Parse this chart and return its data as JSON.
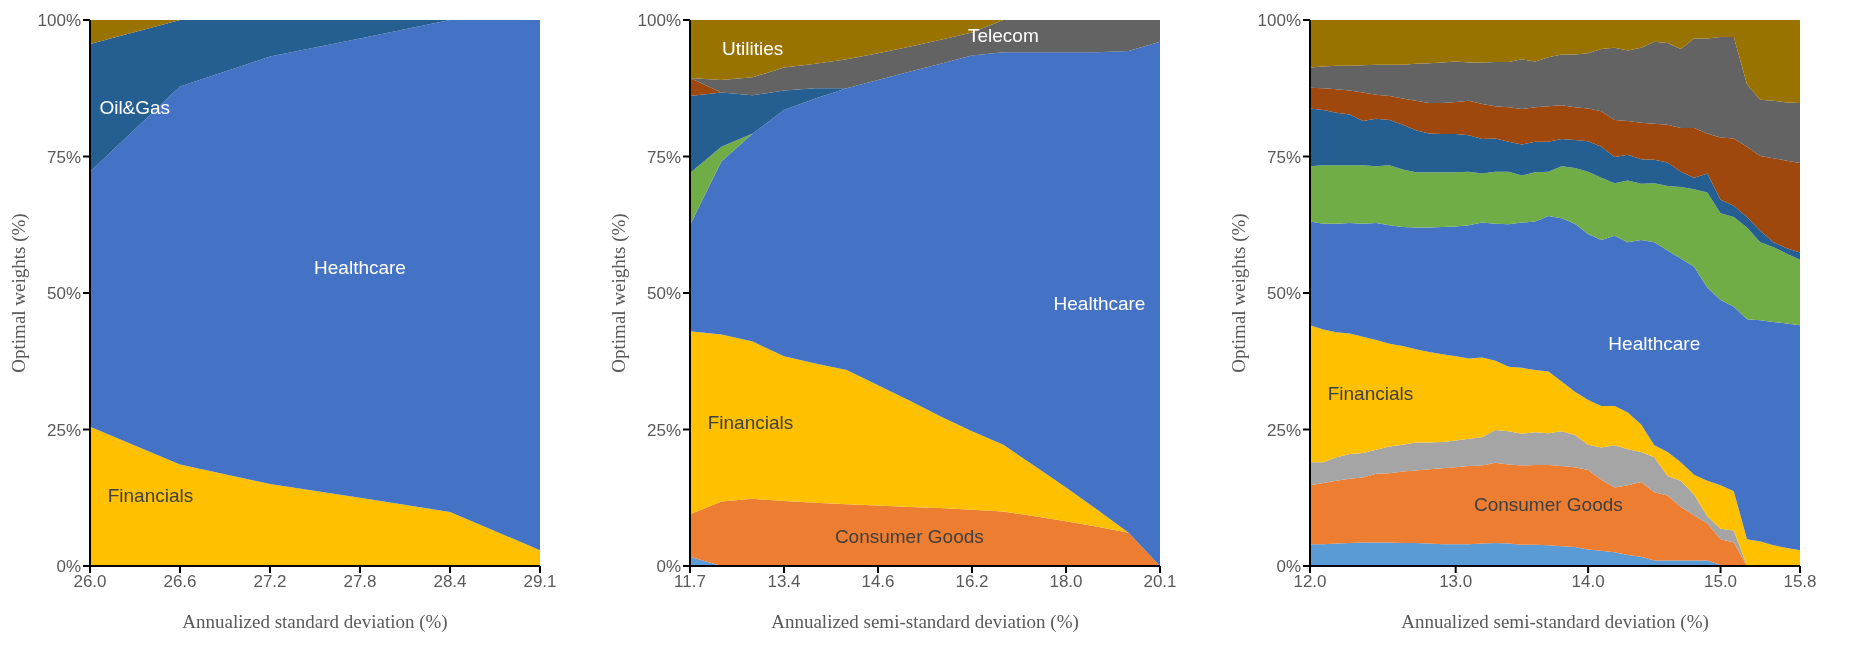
{
  "chart_data": [
    {
      "type": "area",
      "stacked": true,
      "xlabel": "Annualized standard deviation (%)",
      "ylabel": "Optimal weights (%)",
      "categories": [
        "26.0",
        "26.6",
        "27.2",
        "27.8",
        "28.4",
        "29.1"
      ],
      "ylim": [
        0,
        100
      ],
      "yticks": [
        {
          "value": 0,
          "label": "0%"
        },
        {
          "value": 25,
          "label": "25%"
        },
        {
          "value": 50,
          "label": "50%"
        },
        {
          "value": 75,
          "label": "75%"
        },
        {
          "value": 100,
          "label": "100%"
        }
      ],
      "series": [
        {
          "name": "Financials",
          "color": "#ffc000",
          "values": [
            25.5,
            18.6,
            15.0,
            12.5,
            9.9,
            2.9
          ]
        },
        {
          "name": "Healthcare",
          "color": "#4472c4",
          "values": [
            46.7,
            69.2,
            78.3,
            84.1,
            90.1,
            97.1
          ]
        },
        {
          "name": "Oil&Gas",
          "color": "#255e91",
          "values": [
            23.4,
            12.2,
            6.7,
            3.4,
            0,
            0
          ]
        },
        {
          "color": "#997300",
          "values": [
            4.4,
            0,
            0,
            0,
            0,
            0
          ]
        }
      ]
    },
    {
      "type": "area",
      "stacked": true,
      "xlabel": "Annualized semi-standard deviation (%)",
      "ylabel": "Optimal weights (%)",
      "categories": [
        "11.7",
        null,
        null,
        "13.4",
        null,
        null,
        "14.6",
        null,
        null,
        "16.2",
        null,
        null,
        "18.0",
        null,
        null,
        "20.1"
      ],
      "ylim": [
        0,
        100
      ],
      "yticks": [
        {
          "value": 0,
          "label": "0%"
        },
        {
          "value": 25,
          "label": "25%"
        },
        {
          "value": 50,
          "label": "50%"
        },
        {
          "value": 75,
          "label": "75%"
        },
        {
          "value": 100,
          "label": "100%"
        }
      ],
      "series": [
        {
          "color": "#5b9bd5",
          "values": [
            1.7,
            0,
            0,
            0,
            0,
            0,
            0,
            0,
            0,
            0,
            0,
            0,
            0,
            0,
            0,
            0
          ]
        },
        {
          "name": "Consumer Goods",
          "color": "#ed7d31",
          "values": [
            7.8,
            11.8,
            12.3,
            11.9,
            11.6,
            11.3,
            11.1,
            10.8,
            10.6,
            10.3,
            10.0,
            9.1,
            8.2,
            7.2,
            6.1,
            0
          ]
        },
        {
          "name": "Financials",
          "color": "#ffc000",
          "values": [
            33.5,
            30.6,
            28.8,
            26.5,
            25.5,
            24.6,
            22.0,
            19.5,
            16.8,
            14.4,
            12.2,
            9.2,
            6.2,
            3.1,
            0,
            0
          ]
        },
        {
          "name": "Healthcare",
          "color": "#4472c4",
          "values": [
            19.4,
            31.7,
            38.1,
            45.1,
            48.5,
            51.6,
            55.9,
            60.2,
            64.6,
            68.8,
            71.9,
            75.8,
            79.7,
            83.8,
            88.2,
            96.0
          ]
        },
        {
          "color": "#70ad47",
          "values": [
            9.6,
            2.7,
            0,
            0,
            0,
            0,
            0,
            0,
            0,
            0,
            0,
            0,
            0,
            0,
            0,
            0
          ]
        },
        {
          "color": "#255e91",
          "values": [
            14.1,
            9.9,
            7.0,
            3.6,
            1.9,
            0,
            0,
            0,
            0,
            0,
            0,
            0,
            0,
            0,
            0,
            0
          ]
        },
        {
          "color": "#9e480e",
          "values": [
            3.3,
            0,
            0,
            0,
            0,
            0,
            0,
            0,
            0,
            0,
            0,
            0,
            0,
            0,
            0,
            0
          ]
        },
        {
          "name": "Telecom",
          "color": "#636363",
          "values": [
            0,
            2.3,
            3.3,
            4.2,
            4.5,
            5.3,
            4.9,
            4.6,
            4.4,
            4.2,
            5.9,
            5.9,
            5.9,
            5.9,
            5.7,
            4.0
          ]
        },
        {
          "name": "Utilities",
          "color": "#997300",
          "values": [
            10.6,
            11.0,
            10.5,
            8.7,
            8.0,
            7.2,
            6.1,
            4.9,
            3.6,
            2.3,
            0,
            0,
            0,
            0,
            0,
            0
          ]
        }
      ]
    },
    {
      "type": "area",
      "stacked": true,
      "xlabel": "Annualized semi-standard deviation (%)",
      "ylabel": "Optimal weights (%)",
      "categories": [
        "12.0",
        null,
        null,
        null,
        null,
        null,
        null,
        null,
        null,
        null,
        null,
        "13.0",
        null,
        null,
        null,
        null,
        null,
        null,
        null,
        null,
        null,
        "14.0",
        null,
        null,
        null,
        null,
        null,
        null,
        null,
        null,
        null,
        "15.0",
        null,
        null,
        null,
        null,
        null,
        "15.8"
      ],
      "ylim": [
        0,
        100
      ],
      "yticks": [
        {
          "value": 0,
          "label": "0%"
        },
        {
          "value": 25,
          "label": "25%"
        },
        {
          "value": 50,
          "label": "50%"
        },
        {
          "value": 75,
          "label": "75%"
        },
        {
          "value": 100,
          "label": "100%"
        }
      ],
      "series": [
        {
          "color": "#5b9bd5",
          "values": [
            4.0,
            4.0,
            4.1,
            4.2,
            4.3,
            4.3,
            4.3,
            4.2,
            4.2,
            4.1,
            4.0,
            4.0,
            4.0,
            4.1,
            4.2,
            4.1,
            3.9,
            3.9,
            3.8,
            3.6,
            3.5,
            3.0,
            2.8,
            2.5,
            2.0,
            1.7,
            1.0,
            1.0,
            1.0,
            1.0,
            1.0,
            0.2,
            0.2,
            0,
            0,
            0,
            0,
            0
          ]
        },
        {
          "name": "Consumer Goods",
          "color": "#ed7d31",
          "values": [
            10.8,
            11.2,
            11.5,
            11.8,
            11.9,
            12.6,
            12.7,
            13.1,
            13.3,
            13.6,
            13.9,
            14.1,
            14.3,
            14.3,
            14.7,
            14.5,
            14.5,
            14.6,
            14.7,
            14.7,
            14.6,
            14.6,
            13.0,
            11.9,
            12.8,
            13.7,
            12.5,
            11.9,
            9.8,
            8.3,
            6.8,
            4.7,
            4.1,
            0,
            0,
            0,
            0,
            0
          ]
        },
        {
          "color": "#a5a5a5",
          "values": [
            4.2,
            3.8,
            4.3,
            4.5,
            4.5,
            4.4,
            4.9,
            4.9,
            5.1,
            4.9,
            4.8,
            4.9,
            5.0,
            5.2,
            6.0,
            6.1,
            5.8,
            6.0,
            5.8,
            6.4,
            5.9,
            4.6,
            5.9,
            7.7,
            6.6,
            5.5,
            6.4,
            3.6,
            4.8,
            3.8,
            1.3,
            1.9,
            2.2,
            0,
            0,
            0,
            0,
            0
          ]
        },
        {
          "name": "Financials",
          "color": "#ffc000",
          "values": [
            25.1,
            24.3,
            22.9,
            22.1,
            21.3,
            20.1,
            18.8,
            18.1,
            17.1,
            16.6,
            16.1,
            15.4,
            14.7,
            14.6,
            12.7,
            11.8,
            12.1,
            11.4,
            11.3,
            9.1,
            7.9,
            8.2,
            7.6,
            7.2,
            6.7,
            5.0,
            2.2,
            4.4,
            3.4,
            3.6,
            6.5,
            8.0,
            7.2,
            4.9,
            4.5,
            3.8,
            3.3,
            2.9
          ]
        },
        {
          "name": "Healthcare",
          "color": "#4472c4",
          "values": [
            19.0,
            19.4,
            19.9,
            20.2,
            20.7,
            21.4,
            21.7,
            21.8,
            22.3,
            22.8,
            23.3,
            23.8,
            24.4,
            24.7,
            25.1,
            26.1,
            26.6,
            27.2,
            28.5,
            29.9,
            30.8,
            30.4,
            30.4,
            31.2,
            31.2,
            33.8,
            37.2,
            36.9,
            37.3,
            38.1,
            35.4,
            33.9,
            33.8,
            40.3,
            40.5,
            40.9,
            41.1,
            41.2
          ]
        },
        {
          "color": "#70ad47",
          "values": [
            10.1,
            10.7,
            10.7,
            10.6,
            10.7,
            10.4,
            11.0,
            10.5,
            10.1,
            10.1,
            10.0,
            9.9,
            9.8,
            9.0,
            9.5,
            9.6,
            8.6,
            9.0,
            8.1,
            9.5,
            10.2,
            11.4,
            11.4,
            9.6,
            11.3,
            10.3,
            10.8,
            11.8,
            13.1,
            14.2,
            17.4,
            15.9,
            16.4,
            16.8,
            14.3,
            13.7,
            12.8,
            12.0
          ]
        },
        {
          "color": "#255e91",
          "values": [
            10.6,
            10.1,
            9.6,
            9.3,
            8.1,
            8.7,
            8.3,
            8.2,
            7.7,
            7.1,
            7.0,
            7.0,
            6.7,
            6.3,
            6.1,
            5.5,
            5.7,
            5.6,
            5.5,
            5.0,
            5.1,
            5.6,
            5.7,
            4.8,
            4.7,
            4.5,
            4.3,
            4.3,
            2.8,
            2.1,
            3.5,
            2.5,
            2.1,
            1.9,
            2.1,
            0.9,
            1.0,
            1.3
          ]
        },
        {
          "color": "#9e480e",
          "values": [
            3.8,
            4.0,
            4.3,
            4.4,
            5.2,
            4.4,
            4.4,
            4.8,
            5.4,
            5.6,
            5.7,
            5.9,
            6.3,
            6.4,
            5.9,
            6.3,
            6.5,
            6.3,
            6.5,
            6.2,
            6.0,
            6.0,
            6.5,
            6.8,
            6.2,
            6.7,
            6.6,
            6.9,
            8.0,
            9.1,
            7.3,
            11.4,
            12.3,
            12.9,
            13.7,
            15.4,
            16.0,
            16.4
          ]
        },
        {
          "color": "#636363",
          "values": [
            3.7,
            4.0,
            4.3,
            4.5,
            5.0,
            5.5,
            5.7,
            6.2,
            6.8,
            7.3,
            7.4,
            7.4,
            7.0,
            7.6,
            8.1,
            8.3,
            9.1,
            8.4,
            9.0,
            9.3,
            9.7,
            10.1,
            11.4,
            13.2,
            12.9,
            13.7,
            15.0,
            15.0,
            14.5,
            16.4,
            17.4,
            18.4,
            18.6,
            11.4,
            10.3,
            10.5,
            10.7,
            11.0
          ]
        },
        {
          "color": "#997300",
          "values": [
            8.7,
            8.5,
            8.4,
            8.4,
            8.3,
            8.2,
            8.2,
            8.2,
            8.0,
            7.9,
            7.8,
            7.6,
            7.8,
            7.8,
            7.7,
            7.7,
            7.2,
            7.6,
            6.8,
            6.3,
            6.3,
            6.1,
            5.3,
            5.1,
            5.6,
            5.1,
            4.0,
            4.2,
            5.3,
            3.4,
            3.4,
            3.1,
            3.1,
            11.8,
            14.6,
            14.8,
            15.1,
            15.2
          ]
        }
      ]
    }
  ]
}
